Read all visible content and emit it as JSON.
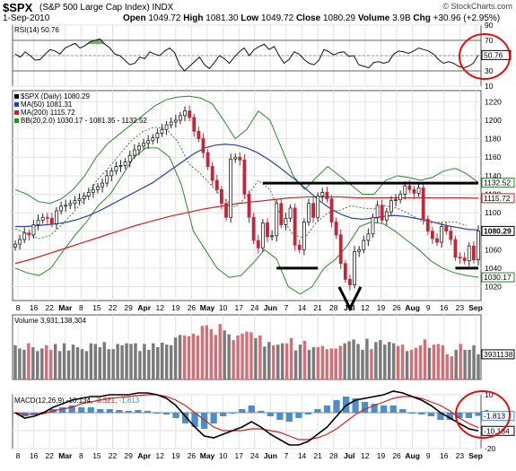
{
  "header": {
    "ticker": "$SPX",
    "name": "(S&P 500 Large Cap Index)",
    "exchange": "INDX",
    "date": "1-Sep-2010",
    "open_label": "Open",
    "open": "1049.72",
    "high_label": "High",
    "high": "1081.30",
    "low_label": "Low",
    "low": "1049.72",
    "close_label": "Close",
    "close": "1080.29",
    "volume_label": "Volume",
    "volume": "3.9B",
    "chg_label": "Chg",
    "chg": "+30.96 (+2.95%)",
    "brand": "© StockCharts.com"
  },
  "colors": {
    "up": "#ffffff",
    "down": "#c0283a",
    "ma50": "#2a3fa8",
    "ma200": "#d02020",
    "bb": "#2a8a2a",
    "volume_up": "#7a7a7a",
    "volume_down": "#d27078",
    "macd_hist": "#4b8fc6",
    "annotation": "#e01010"
  },
  "chart_data": [
    {
      "type": "line",
      "title": "RSI(14) 50.76",
      "ylim": [
        10,
        90
      ],
      "y_ticks": [
        10,
        30,
        50,
        70,
        90
      ],
      "levels": [
        30,
        70
      ],
      "series": [
        {
          "name": "RSI(14)",
          "values": [
            52,
            48,
            55,
            50,
            44,
            45,
            52,
            58,
            56,
            52,
            60,
            63,
            66,
            60,
            63,
            68,
            70,
            72,
            65,
            60,
            52,
            50,
            44,
            38,
            40,
            48,
            46,
            55,
            52,
            50,
            56,
            60,
            54,
            38,
            30,
            36,
            42,
            48,
            38,
            33,
            41,
            50,
            46,
            40,
            48,
            55,
            60,
            50,
            58,
            62,
            65,
            58,
            62,
            50,
            40,
            45,
            55,
            52,
            45,
            40,
            38,
            44,
            58,
            55,
            51,
            54,
            55,
            49,
            50,
            38,
            36,
            34,
            41,
            42,
            40,
            42,
            52,
            56,
            55,
            53,
            56,
            60,
            58,
            56,
            52,
            45,
            40,
            42,
            40,
            36,
            34,
            36,
            40,
            50.76
          ]
        }
      ],
      "value_label": "50.76"
    },
    {
      "type": "candlestick",
      "title": "$SPX (Daily) 1080.29",
      "ylim": [
        1005,
        1232
      ],
      "y_ticks": [
        1020,
        1040,
        1060,
        1080,
        1100,
        1120,
        1140,
        1160,
        1180,
        1200,
        1220
      ],
      "x_ticks": [
        "8",
        "16",
        "22",
        "Mar",
        "8",
        "15",
        "22",
        "29",
        "Apr",
        "12",
        "19",
        "26",
        "May",
        "10",
        "17",
        "24",
        "Jun",
        "7",
        "14",
        "21",
        "28",
        "Jul",
        "12",
        "19",
        "26",
        "Aug",
        "9",
        "16",
        "23",
        "Sep"
      ],
      "legend": [
        {
          "name": "$SPX (Daily) 1080.29",
          "color": "#000000"
        },
        {
          "name": "MA(50) 1081.31",
          "color": "#2a3fa8"
        },
        {
          "name": "MA(200) 1115.72",
          "color": "#d02020"
        },
        {
          "name": "BB(20,2.0) 1030.17 - 1081.35 - 1132.52",
          "color": "#2a8a2a"
        }
      ],
      "price_labels": {
        "bb_upper": "1132.52",
        "ma200": "1115.72",
        "close": "1080.29",
        "bb_lower": "1030.17"
      },
      "close": [
        1066,
        1071,
        1078,
        1076,
        1087,
        1092,
        1095,
        1094,
        1088,
        1102,
        1107,
        1108,
        1110,
        1113,
        1115,
        1118,
        1122,
        1125,
        1128,
        1132,
        1140,
        1145,
        1150,
        1151,
        1155,
        1162,
        1168,
        1172,
        1175,
        1178,
        1181,
        1186,
        1190,
        1195,
        1198,
        1200,
        1205,
        1210,
        1203,
        1188,
        1180,
        1165,
        1150,
        1135,
        1125,
        1110,
        1095,
        1158,
        1160,
        1157,
        1120,
        1095,
        1070,
        1062,
        1089,
        1074,
        1075,
        1110,
        1087,
        1094,
        1105,
        1065,
        1060,
        1090,
        1110,
        1095,
        1118,
        1122,
        1115,
        1090,
        1076,
        1045,
        1028,
        1022,
        1058,
        1060,
        1070,
        1077,
        1095,
        1108,
        1092,
        1101,
        1113,
        1114,
        1120,
        1129,
        1125,
        1121,
        1127,
        1093,
        1080,
        1072,
        1068,
        1085,
        1080,
        1071,
        1052,
        1051,
        1048,
        1064,
        1049,
        1080.29
      ],
      "ma50": [
        1085,
        1085,
        1086,
        1087,
        1088,
        1090,
        1093,
        1097,
        1102,
        1108,
        1114,
        1120,
        1126,
        1132,
        1140,
        1148,
        1156,
        1164,
        1170,
        1173,
        1174,
        1173,
        1170,
        1165,
        1158,
        1150,
        1141,
        1132,
        1122,
        1112,
        1104,
        1098,
        1094,
        1093,
        1094,
        1096,
        1097,
        1096,
        1094,
        1092,
        1089,
        1086,
        1084,
        1082,
        1081.31
      ],
      "ma200": [
        1045,
        1050,
        1056,
        1062,
        1068,
        1074,
        1080,
        1086,
        1091,
        1096,
        1100,
        1104,
        1107,
        1110,
        1112,
        1114,
        1116,
        1117,
        1117,
        1117,
        1116,
        1116,
        1116,
        1116,
        1116,
        1116,
        1116,
        1115.72
      ],
      "bb_upper": [
        1125,
        1120,
        1112,
        1110,
        1115,
        1125,
        1140,
        1160,
        1175,
        1185,
        1195,
        1205,
        1215,
        1222,
        1225,
        1226,
        1224,
        1218,
        1200,
        1180,
        1190,
        1210,
        1200,
        1170,
        1140,
        1125,
        1138,
        1150,
        1140,
        1130,
        1120,
        1120,
        1135,
        1140,
        1138,
        1135,
        1138,
        1145,
        1148,
        1142,
        1132.52
      ],
      "bb_lower": [
        1040,
        1035,
        1032,
        1040,
        1058,
        1075,
        1090,
        1108,
        1120,
        1140,
        1160,
        1170,
        1170,
        1160,
        1130,
        1080,
        1060,
        1040,
        1030,
        1032,
        1045,
        1060,
        1050,
        1020,
        1012,
        1020,
        1040,
        1050,
        1065,
        1085,
        1090,
        1088,
        1080,
        1070,
        1060,
        1048,
        1040,
        1035,
        1032,
        1030.17
      ],
      "annotations": [
        {
          "type": "resistance",
          "from": "May 20",
          "to": "Sep 1",
          "level": 1132
        },
        {
          "type": "support",
          "from": "May 25",
          "to": "Jun 8",
          "level": 1040
        },
        {
          "type": "support",
          "from": "Aug 24",
          "to": "Sep 1",
          "level": 1040
        },
        {
          "type": "v-mark",
          "at": "Jul 1",
          "level": 1010
        }
      ]
    },
    {
      "type": "bar",
      "title": "Volume 3,931,138,304",
      "value_label": "3931138",
      "ylim": [
        0,
        10
      ],
      "values": [
        5.3,
        4.8,
        4.6,
        5.6,
        5.0,
        4.4,
        4.8,
        5.3,
        4.6,
        5.5,
        4.4,
        5.6,
        4.5,
        5.4,
        5.0,
        4.7,
        4.4,
        5.6,
        5.5,
        5.0,
        5.8,
        4.7,
        4.7,
        5.5,
        5.3,
        5.6,
        5.5,
        5.6,
        4.4,
        5.5,
        4.6,
        5.6,
        5.0,
        5.7,
        5.4,
        5.3,
        6.5,
        6.9,
        6.8,
        6.7,
        7.1,
        6.8,
        8.3,
        8.4,
        7.8,
        6.9,
        8.6,
        7.6,
        7.0,
        6.1,
        6.8,
        7.1,
        7.4,
        7.3,
        6.4,
        6.8,
        5.1,
        5.8,
        5.3,
        5.4,
        5.6,
        5.6,
        6.4,
        4.5,
        5.4,
        6.0,
        4.6,
        5.0,
        5.0,
        5.2,
        4.7,
        4.8,
        4.8,
        5.2,
        5.6,
        5.9,
        6.2,
        5.5,
        4.6,
        6.3,
        4.7,
        5.8,
        6.1,
        5.4,
        5.8,
        5.6,
        5.2,
        5.4,
        4.4,
        4.6,
        4.9,
        5.3,
        6.2,
        4.9,
        5.4,
        5.5,
        5.3,
        3.9,
        3.6,
        4.6,
        5.5,
        4.6,
        4.6,
        5.3,
        3.9
      ]
    },
    {
      "type": "line",
      "title": "MACD(12,26,9) -10.134, -8.321, -1.813",
      "ylim": [
        -20,
        10
      ],
      "y_ticks": [
        -20,
        -10,
        0,
        10
      ],
      "value_labels": [
        "-1.813",
        "-10.134"
      ],
      "legend": [
        {
          "name": "MACD(12,26,9)",
          "value": "-10.134",
          "color": "#000000"
        },
        {
          "name": "Signal",
          "value": "-8.321",
          "color": "#d02020"
        },
        {
          "name": "Histogram",
          "value": "-1.813",
          "color": "#4b8fc6"
        }
      ],
      "series": [
        {
          "name": "MACD",
          "values": [
            0,
            -3,
            -2,
            0,
            3,
            5,
            7,
            8,
            9,
            9,
            10,
            10,
            10,
            11,
            11,
            10,
            8,
            4,
            -2,
            -8,
            -13,
            -14,
            -12,
            -10,
            -8,
            -5,
            -8,
            -12,
            -15,
            -18,
            -18,
            -16,
            -12,
            -8,
            -2,
            4,
            7,
            8,
            9,
            10,
            12,
            11,
            9,
            7,
            4,
            0,
            -3,
            -6,
            -9,
            -10.134
          ]
        },
        {
          "name": "Signal",
          "values": [
            0,
            -1,
            -1,
            -0.5,
            1,
            2,
            3,
            5,
            6,
            7,
            8,
            8.5,
            9,
            9.5,
            10,
            10,
            9,
            7,
            4,
            0,
            -4,
            -8,
            -10,
            -10,
            -10,
            -9,
            -9,
            -10,
            -11,
            -13,
            -15,
            -15,
            -14,
            -12,
            -9,
            -5,
            -1,
            2,
            4,
            6,
            8,
            9,
            9,
            8,
            6,
            4,
            1,
            -3,
            -6,
            -8.321
          ]
        },
        {
          "name": "Histogram",
          "values": [
            0,
            -2,
            -1,
            0.5,
            2,
            3,
            4,
            3,
            3,
            2,
            2,
            1.5,
            1,
            1.5,
            1,
            0,
            -1,
            -3,
            -6,
            -8,
            -9,
            -6,
            -2,
            0,
            2,
            4,
            1,
            -2,
            -4,
            -5,
            -3,
            -1,
            2,
            4,
            7,
            9,
            8,
            6,
            5,
            4,
            4,
            2,
            0,
            -1,
            -2,
            -4,
            -4,
            -3,
            -3,
            -1.813
          ]
        }
      ],
      "x_ticks": [
        "8",
        "16",
        "22",
        "Mar",
        "8",
        "15",
        "22",
        "29",
        "Apr",
        "12",
        "19",
        "26",
        "May",
        "10",
        "17",
        "24",
        "Jun",
        "7",
        "14",
        "21",
        "28",
        "Jul",
        "12",
        "19",
        "26",
        "Aug",
        "9",
        "16",
        "23",
        "Sep"
      ]
    }
  ]
}
